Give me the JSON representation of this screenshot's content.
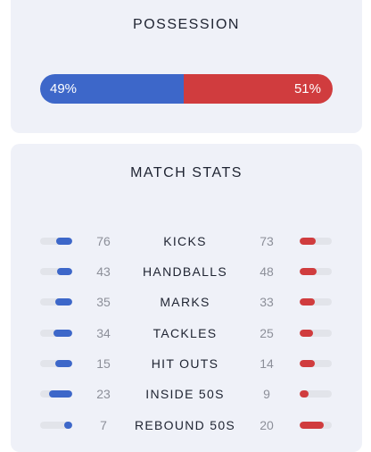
{
  "possession": {
    "title": "POSSESSION",
    "home_label": "49%",
    "away_label": "51%",
    "home_pct": 49,
    "away_pct": 51
  },
  "match_stats": {
    "title": "MATCH STATS",
    "rows": [
      {
        "label": "KICKS",
        "home": "76",
        "away": "73"
      },
      {
        "label": "HANDBALLS",
        "home": "43",
        "away": "48"
      },
      {
        "label": "MARKS",
        "home": "35",
        "away": "33"
      },
      {
        "label": "TACKLES",
        "home": "34",
        "away": "25"
      },
      {
        "label": "HIT OUTS",
        "home": "15",
        "away": "14"
      },
      {
        "label": "INSIDE 50S",
        "home": "23",
        "away": "9"
      },
      {
        "label": "REBOUND 50S",
        "home": "7",
        "away": "20"
      }
    ]
  },
  "colors": {
    "home": "#3d67c9",
    "away": "#d03c3e",
    "card": "#eff1f8",
    "track": "#e2e4ea"
  }
}
